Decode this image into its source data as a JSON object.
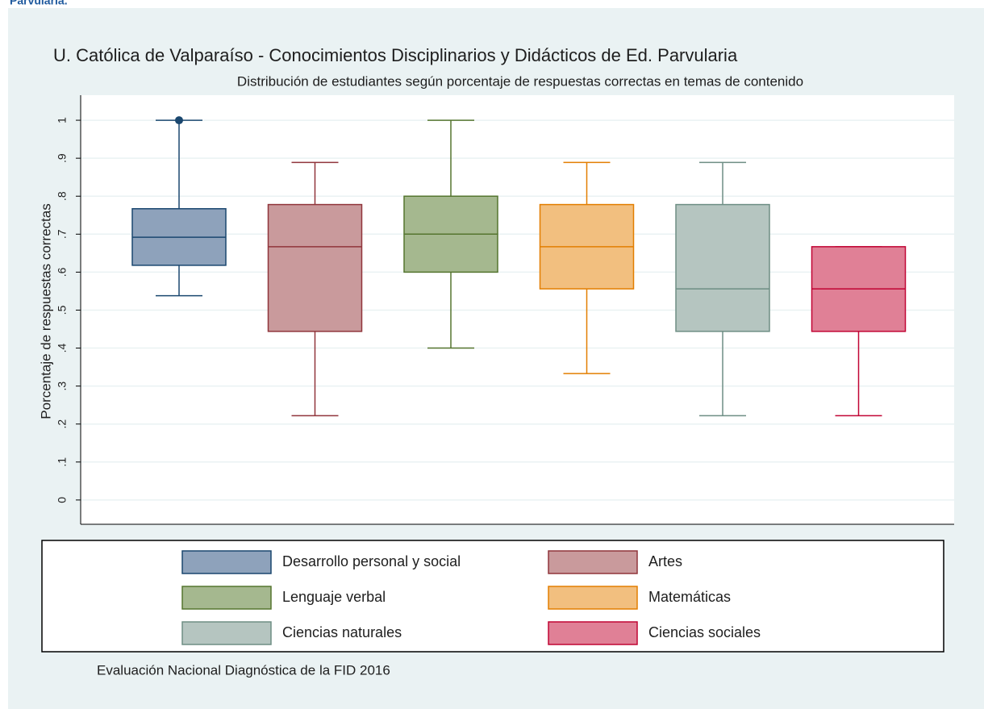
{
  "page_heading": "Parvularia.",
  "chart_data": {
    "type": "box",
    "title": "U. Católica de Valparaíso - Conocimientos Disciplinarios y Didácticos de Ed. Parvularia",
    "subtitle": "Distribución de estudiantes según porcentaje de respuestas correctas en temas de contenido",
    "y_label": "Porcentaje de respuestas correctas",
    "note": "Evaluación Nacional Diagnóstica de la FID 2016",
    "ylim": [
      -0.064,
      1.066
    ],
    "yticks": [
      0,
      {
        "value": 0.1,
        "label": ".1"
      },
      {
        "value": 0.2,
        "label": ".2"
      },
      {
        "value": 0.3,
        "label": ".3"
      },
      {
        "value": 0.4,
        "label": ".4"
      },
      {
        "value": 0.5,
        "label": ".5"
      },
      {
        "value": 0.6,
        "label": ".6"
      },
      {
        "value": 0.7,
        "label": ".7"
      },
      {
        "value": 0.8,
        "label": ".8"
      },
      {
        "value": 0.9,
        "label": ".9"
      },
      1
    ],
    "grid": true,
    "series": [
      {
        "name": "Desarrollo personal y social",
        "color": "#1a476f",
        "fill": "#8ea2bb",
        "whisker_low": 0.538,
        "q1": 0.618,
        "median": 0.692,
        "q3": 0.767,
        "whisker_high": 1.0,
        "outliers": [
          1.0
        ]
      },
      {
        "name": "Artes",
        "color": "#90353b",
        "fill": "#c99a9c",
        "whisker_low": 0.222,
        "q1": 0.444,
        "median": 0.667,
        "q3": 0.778,
        "whisker_high": 0.889,
        "outliers": []
      },
      {
        "name": "Lenguaje verbal",
        "color": "#55752f",
        "fill": "#a5b88f",
        "whisker_low": 0.4,
        "q1": 0.6,
        "median": 0.7,
        "q3": 0.8,
        "whisker_high": 1.0,
        "outliers": []
      },
      {
        "name": "Matemáticas",
        "color": "#e37e00",
        "fill": "#f2bf7f",
        "whisker_low": 0.333,
        "q1": 0.556,
        "median": 0.667,
        "q3": 0.778,
        "whisker_high": 0.889,
        "outliers": []
      },
      {
        "name": "Ciencias naturales",
        "color": "#6e8e84",
        "fill": "#b5c5c0",
        "whisker_low": 0.222,
        "q1": 0.444,
        "median": 0.556,
        "q3": 0.778,
        "whisker_high": 0.889,
        "outliers": []
      },
      {
        "name": "Ciencias sociales",
        "color": "#c10534",
        "fill": "#e08096",
        "whisker_low": 0.222,
        "q1": 0.444,
        "median": 0.556,
        "q3": 0.667,
        "whisker_high": 0.667,
        "outliers": []
      }
    ]
  }
}
